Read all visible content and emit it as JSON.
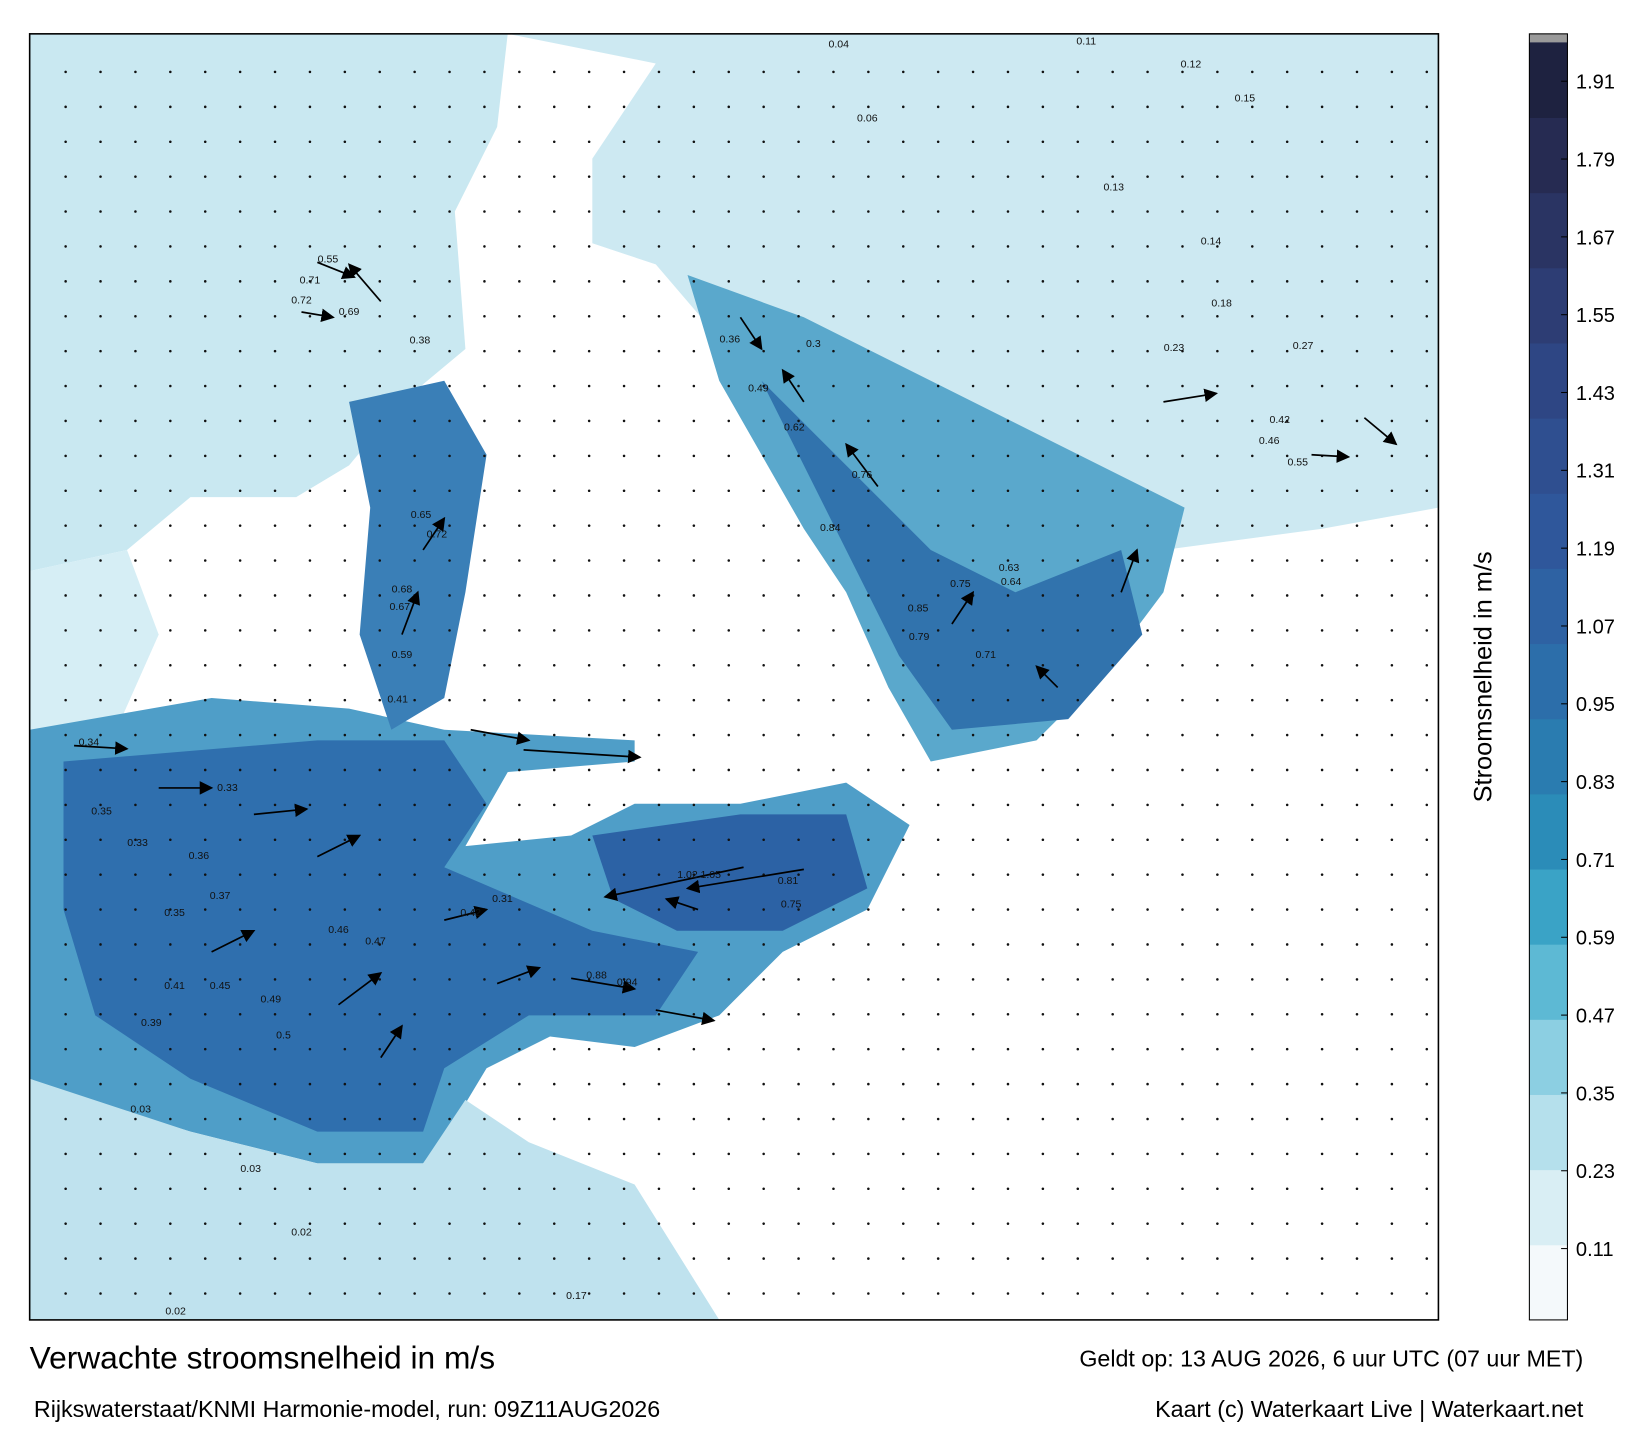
{
  "title": "Verwachte stroomsnelheid in m/s",
  "subtitle": "Rijkswaterstaat/KNMI Harmonie-model, run: 09Z11AUG2026",
  "valid_time": "Geldt op: 13 AUG 2026, 6 uur UTC (07 uur MET)",
  "credit": "Kaart (c) Waterkaart Live | Waterkaart.net",
  "colorbar": {
    "label": "Stroomsnelheid in m/s",
    "lim": [
      0,
      1.97
    ],
    "ticks": [
      0.11,
      0.23,
      0.35,
      0.47,
      0.59,
      0.71,
      0.83,
      0.95,
      1.07,
      1.19,
      1.31,
      1.43,
      1.55,
      1.67,
      1.79,
      1.91
    ],
    "colors": [
      "#f4f9fb",
      "#d9eef4",
      "#b5e0ec",
      "#8ccfe2",
      "#5db9d4",
      "#3aa3c6",
      "#2b8cb8",
      "#2a7cb0",
      "#2c6eaa",
      "#2e62a3",
      "#2f579b",
      "#2f4f90",
      "#2e4684",
      "#2d3d74",
      "#2a3463",
      "#262b52",
      "#1e2240"
    ]
  },
  "map": {
    "labels": [
      0.71,
      0.72,
      0.55,
      0.69,
      0.38,
      0.65,
      0.72,
      0.68,
      0.67,
      0.59,
      0.41,
      0.34,
      0.33,
      0.35,
      0.33,
      0.36,
      0.37,
      0.35,
      0.46,
      0.47,
      0.42,
      0.31,
      1.02,
      1.05,
      0.81,
      0.75,
      0.88,
      0.94,
      0.79,
      0.85,
      0.75,
      0.71,
      0.63,
      0.64,
      0.3,
      0.36,
      0.49,
      0.62,
      0.76,
      0.84,
      0.42,
      0.46,
      0.55,
      0.15,
      0.12,
      0.13,
      0.23,
      0.27,
      0.18,
      0.14,
      0.41,
      0.45,
      0.49,
      0.5,
      0.39,
      0.03,
      0.03,
      0.02,
      0.02,
      0.17,
      0.06,
      0.04,
      0.11
    ]
  }
}
